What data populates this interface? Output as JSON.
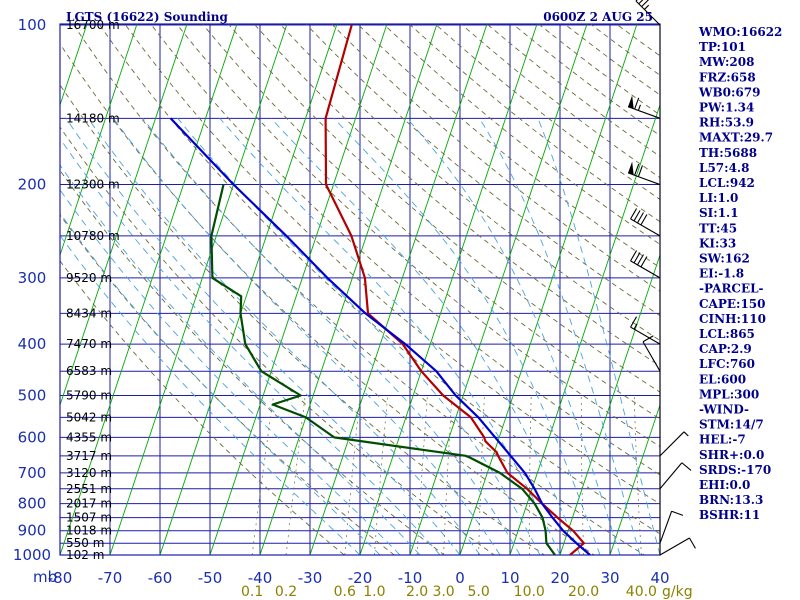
{
  "header": {
    "title": "LGTS (16622) Sounding",
    "time": "0600Z  2 AUG 25"
  },
  "chart_data": {
    "type": "line",
    "title": "LGTS (16622) Sounding",
    "pressure_unit": "mb",
    "temperature_ticks": [
      -80,
      -70,
      -60,
      -50,
      -40,
      -30,
      -20,
      -10,
      0,
      10,
      20,
      30,
      40
    ],
    "temperature_tick_labels": [
      "-80",
      "-70",
      "-60",
      "-50",
      "-40",
      "-30",
      "-20",
      "-10",
      "0",
      "10",
      "20",
      "30",
      "40"
    ],
    "pressure_ticks": [
      100,
      200,
      300,
      400,
      500,
      600,
      700,
      800,
      900,
      1000
    ],
    "pressure_tick_labels": [
      "100",
      "200",
      "300",
      "400",
      "500",
      "600",
      "700",
      "800",
      "900",
      "1000"
    ],
    "height_labels": [
      {
        "p": 100,
        "label": "16700 m"
      },
      {
        "p": 150,
        "label": "14180 m"
      },
      {
        "p": 200,
        "label": "12300 m"
      },
      {
        "p": 250,
        "label": "10780 m"
      },
      {
        "p": 300,
        "label": "9520 m"
      },
      {
        "p": 350,
        "label": "8434 m"
      },
      {
        "p": 400,
        "label": "7470 m"
      },
      {
        "p": 450,
        "label": "6583 m"
      },
      {
        "p": 500,
        "label": "5790 m"
      },
      {
        "p": 550,
        "label": "5042 m"
      },
      {
        "p": 600,
        "label": "4355 m"
      },
      {
        "p": 650,
        "label": "3717 m"
      },
      {
        "p": 700,
        "label": "3120 m"
      },
      {
        "p": 750,
        "label": "2551 m"
      },
      {
        "p": 800,
        "label": "2017 m"
      },
      {
        "p": 850,
        "label": "1507 m"
      },
      {
        "p": 900,
        "label": "1018 m"
      },
      {
        "p": 950,
        "label": "550 m"
      },
      {
        "p": 1000,
        "label": "102 m"
      }
    ],
    "mixing_ratio_labels": [
      "0.1",
      "0.2",
      "0.6",
      "1.0",
      "2.0",
      "3.0",
      "5.0",
      "10.0",
      "20.0",
      "40.0"
    ],
    "mixing_ratio_unit": "g/kg",
    "series": [
      {
        "name": "Temperature",
        "color": "#b30000",
        "points": [
          [
            100,
            -57.0
          ],
          [
            150,
            -56.0
          ],
          [
            200,
            -51.5
          ],
          [
            250,
            -43.0
          ],
          [
            300,
            -37.5
          ],
          [
            350,
            -34.5
          ],
          [
            400,
            -25.5
          ],
          [
            450,
            -20.0
          ],
          [
            500,
            -14.0
          ],
          [
            550,
            -7.0
          ],
          [
            600,
            -3.0
          ],
          [
            610,
            -2.5
          ],
          [
            620,
            -1.5
          ],
          [
            640,
            0.5
          ],
          [
            650,
            1.0
          ],
          [
            700,
            4.0
          ],
          [
            750,
            9.0
          ],
          [
            800,
            13.0
          ],
          [
            850,
            17.0
          ],
          [
            900,
            21.0
          ],
          [
            950,
            24.0
          ],
          [
            1000,
            22.0
          ]
        ]
      },
      {
        "name": "Dewpoint",
        "color": "#004d00",
        "points": [
          [
            200,
            -72.0
          ],
          [
            250,
            -71.0
          ],
          [
            300,
            -68.0
          ],
          [
            325,
            -61.0
          ],
          [
            350,
            -60.0
          ],
          [
            400,
            -57.0
          ],
          [
            450,
            -52.0
          ],
          [
            500,
            -42.5
          ],
          [
            520,
            -47.5
          ],
          [
            550,
            -40.0
          ],
          [
            600,
            -33.0
          ],
          [
            650,
            -5.5
          ],
          [
            655,
            -4.5
          ],
          [
            700,
            2.5
          ],
          [
            750,
            8.0
          ],
          [
            800,
            11.5
          ],
          [
            850,
            14.0
          ],
          [
            900,
            15.5
          ],
          [
            950,
            16.5
          ],
          [
            1000,
            19.0
          ]
        ]
      },
      {
        "name": "Parcel",
        "color": "#0000cc",
        "points": [
          [
            150,
            -87.0
          ],
          [
            200,
            -70.0
          ],
          [
            250,
            -56.0
          ],
          [
            300,
            -45.0
          ],
          [
            350,
            -35.0
          ],
          [
            400,
            -25.0
          ],
          [
            450,
            -17.0
          ],
          [
            500,
            -11.5
          ],
          [
            550,
            -5.5
          ],
          [
            600,
            -0.8
          ],
          [
            650,
            3.5
          ],
          [
            700,
            7.5
          ],
          [
            750,
            10.5
          ],
          [
            800,
            13.0
          ],
          [
            850,
            16.0
          ],
          [
            900,
            19.0
          ],
          [
            950,
            22.5
          ],
          [
            1000,
            26.0
          ]
        ]
      }
    ],
    "wind_barbs": [
      {
        "p": 100,
        "dir": 315,
        "spd": 35
      },
      {
        "p": 150,
        "dir": 290,
        "spd": 65
      },
      {
        "p": 200,
        "dir": 290,
        "spd": 70
      },
      {
        "p": 250,
        "dir": 300,
        "spd": 40
      },
      {
        "p": 300,
        "dir": 300,
        "spd": 40
      },
      {
        "p": 400,
        "dir": 300,
        "spd": 15
      },
      {
        "p": 450,
        "dir": 330,
        "spd": 10
      },
      {
        "p": 650,
        "dir": 45,
        "spd": 5
      },
      {
        "p": 750,
        "dir": 40,
        "spd": 10
      },
      {
        "p": 950,
        "dir": 20,
        "spd": 10
      },
      {
        "p": 1000,
        "dir": 60,
        "spd": 10
      }
    ]
  },
  "indices": [
    "WMO:16622",
    "TP:101",
    "MW:208",
    "FRZ:658",
    "WB0:679",
    "PW:1.34",
    "RH:53.9",
    "MAXT:29.7",
    "TH:5688",
    "L57:4.8",
    "LCL:942",
    "LI:1.0",
    "SI:1.1",
    "TT:45",
    "KI:33",
    "SW:162",
    "EI:-1.8",
    "-PARCEL-",
    "CAPE:150",
    "CINH:110",
    "LCL:865",
    "CAP:2.9",
    "LFC:760",
    "EL:600",
    "MPL:300",
    "-WIND-",
    "STM:14/7",
    "HEL:-7",
    "SHR+:0.0",
    "SRDS:-170",
    "EHI:0.0",
    "BRN:13.3",
    "BSHR:11"
  ],
  "colors": {
    "grid": "#1d1dab",
    "isotherm": "#00aa00",
    "dry_adiabat": "#6b6b3a",
    "moist_adiabat": "#4aa3df",
    "temperature": "#b30000",
    "dewpoint": "#004d00",
    "parcel": "#0000cc"
  }
}
